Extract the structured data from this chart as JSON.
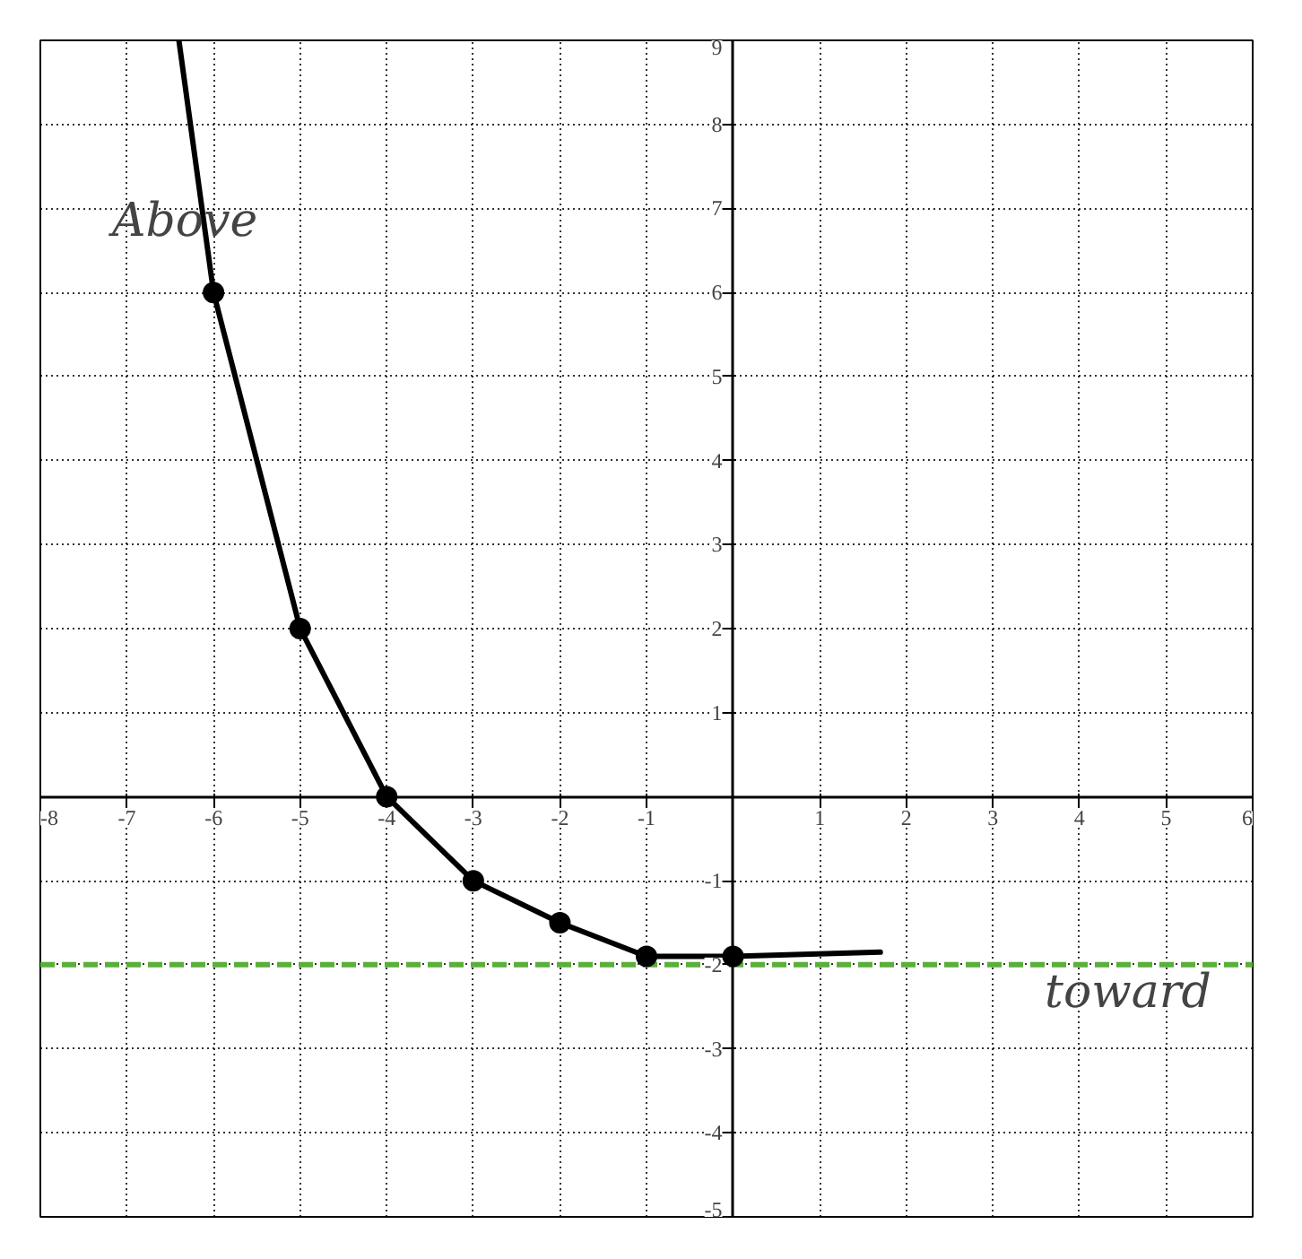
{
  "chart_data": {
    "type": "line",
    "xlim": [
      -8,
      6
    ],
    "ylim": [
      -5,
      9
    ],
    "xticks": [
      -8,
      -7,
      -6,
      -5,
      -4,
      -3,
      -2,
      -1,
      {
        "value": 0,
        "label": null
      },
      1,
      2,
      3,
      4,
      5,
      6
    ],
    "yticks": [
      -5,
      -4,
      -3,
      -2,
      -1,
      {
        "value": 0,
        "label": null
      },
      1,
      2,
      3,
      4,
      5,
      6,
      7,
      8,
      9
    ],
    "grid": true,
    "series": [
      {
        "color": "#000000",
        "marker": "none",
        "line_style": "solid",
        "x": [
          -6.4,
          -6,
          -5,
          -4,
          -3,
          -2,
          -1,
          0,
          1.7
        ],
        "values": [
          9,
          6,
          2,
          0,
          -1,
          -1.5,
          -1.9,
          -1.9,
          -1.85
        ]
      },
      {
        "type": "scatter",
        "color": "#000000",
        "marker": "circle",
        "x": [
          -6,
          -5,
          -4,
          -3,
          -2,
          -1,
          0
        ],
        "values": [
          6,
          2,
          0,
          -1,
          -1.5,
          -1.9,
          -1.9
        ]
      }
    ],
    "ref_lines": [
      {
        "axis": "y",
        "value": -2,
        "label": null,
        "color": "#5aaf3a",
        "line_style": "dashed"
      }
    ],
    "annotations": [
      "Above",
      "toward"
    ]
  }
}
